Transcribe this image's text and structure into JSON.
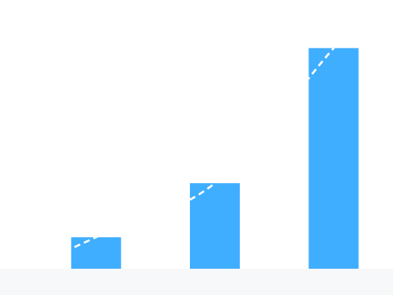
{
  "chart_data": {
    "type": "bar",
    "categories": [
      "",
      "",
      ""
    ],
    "values": [
      35,
      95,
      245
    ],
    "ylim": [
      0,
      280
    ],
    "grid": false,
    "colors": {
      "bar": "#40AEFF",
      "trend_line": "#FFFFFF",
      "background": "#FFFFFF",
      "baseline_band": "#F7F8FA"
    },
    "trend_line": {
      "style": "dashed",
      "clipped_to_bars": true,
      "values": [
        35,
        95,
        245
      ]
    }
  }
}
